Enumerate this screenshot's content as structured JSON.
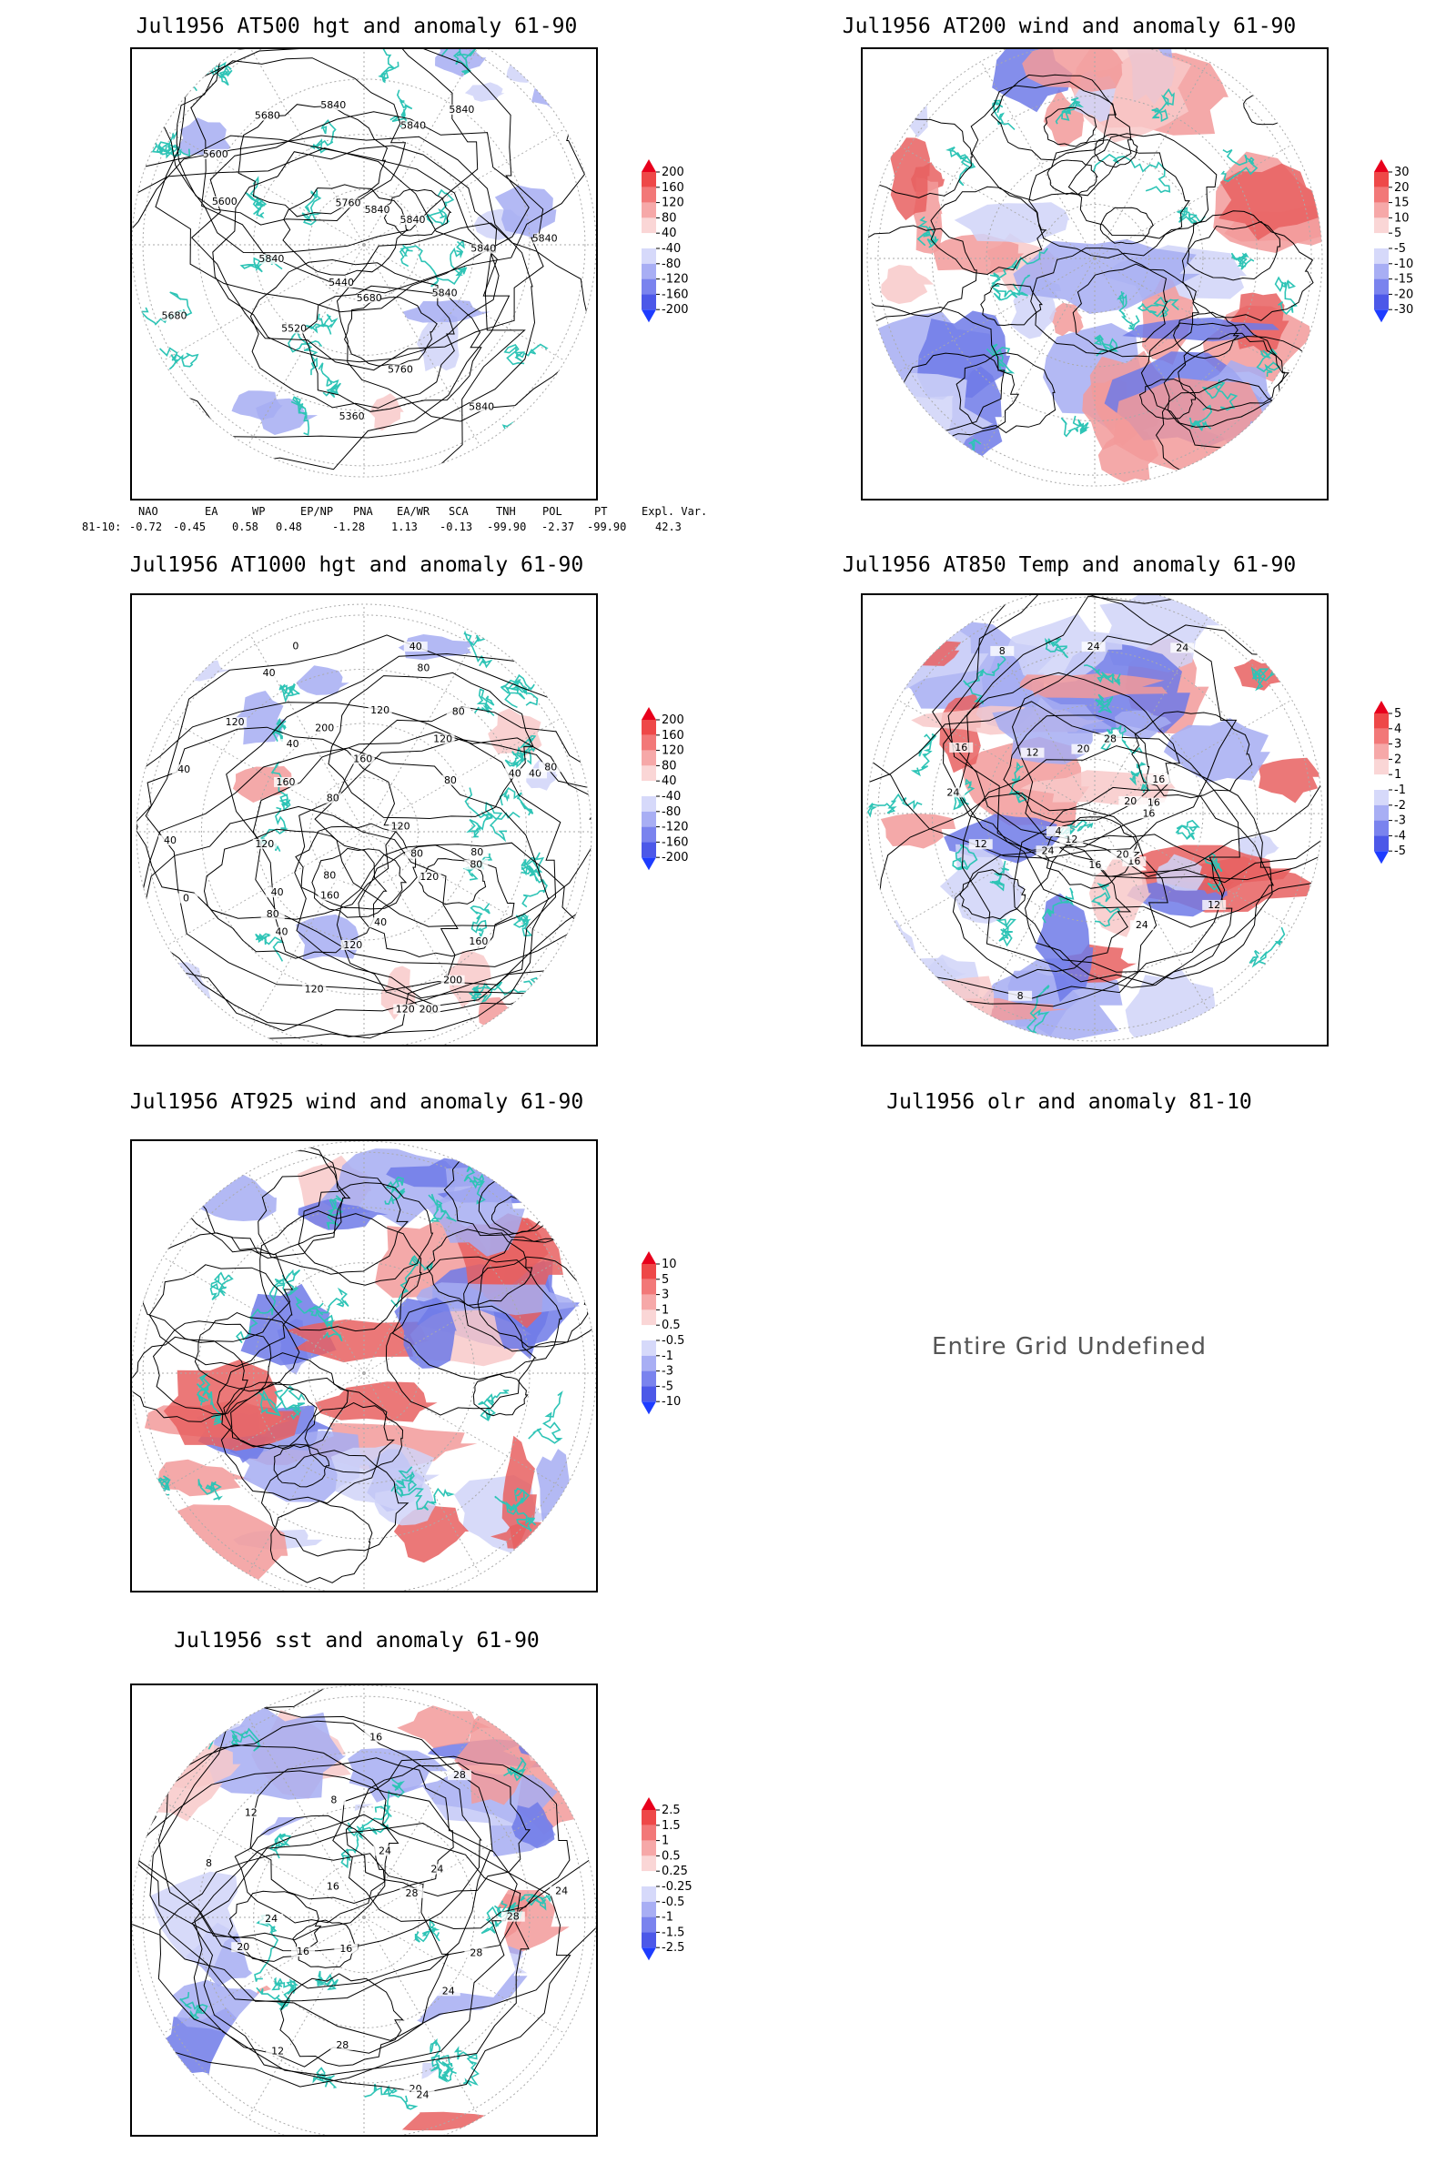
{
  "panels": [
    {
      "id": "p1",
      "title": "Jul1956 AT500 hgt and anomaly 61-90",
      "contour_labels": [
        "5840",
        "5840",
        "5840",
        "5760",
        "5680",
        "5360",
        "5440",
        "5520",
        "5680",
        "5840",
        "5600",
        "5600",
        "5680",
        "5760",
        "5840",
        "5840",
        "5840",
        "5840",
        "5840",
        "5840"
      ],
      "colorbar": [
        "200",
        "160",
        "120",
        "80",
        "40",
        "-40",
        "-80",
        "-120",
        "-160",
        "-200"
      ]
    },
    {
      "id": "p2",
      "title": "Jul1956 AT200 wind and anomaly 61-90",
      "colorbar": [
        "30",
        "20",
        "15",
        "10",
        "5",
        "-5",
        "-10",
        "-15",
        "-20",
        "-30"
      ]
    },
    {
      "id": "p3",
      "title": "Jul1956 AT1000 hgt and anomaly 61-90",
      "contour_labels": [
        "80",
        "80",
        "80",
        "120",
        "160",
        "200",
        "200",
        "120",
        "40",
        "120",
        "160",
        "120",
        "40",
        "80",
        "80",
        "40",
        "0",
        "40",
        "120",
        "40",
        "160",
        "120",
        "40",
        "80",
        "0",
        "40",
        "200",
        "160",
        "120",
        "80",
        "40",
        "80",
        "120",
        "80",
        "40",
        "40",
        "80",
        "120"
      ],
      "colorbar": [
        "200",
        "160",
        "120",
        "80",
        "40",
        "-40",
        "-80",
        "-120",
        "-160",
        "-200"
      ]
    },
    {
      "id": "p4",
      "title": "Jul1956 AT850 Temp and anomaly 61-90",
      "contour_labels": [
        "16",
        "12",
        "16",
        "20",
        "24",
        "16",
        "8",
        "12",
        "24",
        "4",
        "12",
        "24",
        "16",
        "12",
        "8",
        "20",
        "24",
        "28",
        "24",
        "16",
        "20",
        "16"
      ],
      "colorbar": [
        "5",
        "4",
        "3",
        "2",
        "1",
        "-1",
        "-2",
        "-3",
        "-4",
        "-5"
      ]
    },
    {
      "id": "p5",
      "title": "Jul1956 AT925 wind and anomaly 61-90",
      "colorbar": [
        "10",
        "5",
        "3",
        "1",
        "0.5",
        "-0.5",
        "-1",
        "-3",
        "-5",
        "-10"
      ]
    },
    {
      "id": "p6",
      "title": "Jul1956 olr and anomaly 81-10",
      "message": "Entire Grid Undefined"
    },
    {
      "id": "p7",
      "title": "Jul1956 sst and anomaly 61-90",
      "contour_labels": [
        "28",
        "28",
        "24",
        "20",
        "24",
        "28",
        "16",
        "12",
        "16",
        "20",
        "24",
        "8",
        "12",
        "16",
        "8",
        "16",
        "24",
        "28",
        "24",
        "28",
        "24"
      ],
      "colorbar": [
        "2.5",
        "1.5",
        "1",
        "0.5",
        "0.25",
        "-0.25",
        "-0.5",
        "-1",
        "-1.5",
        "-2.5"
      ]
    }
  ],
  "indices": {
    "headers": [
      "NAO",
      "EA",
      "WP",
      "EP/NP",
      "PNA",
      "EA/WR",
      "SCA",
      "TNH",
      "POL",
      "PT",
      "Expl. Var."
    ],
    "row_label": "81-10:",
    "values": [
      "-0.72",
      "-0.45",
      "0.58",
      "0.48",
      "-1.28",
      "1.13",
      "-0.13",
      "-99.90",
      "-2.37",
      "-99.90",
      "42.3"
    ]
  },
  "colors": {
    "coast": "#2ec4b6",
    "pos_strong": "#e8001c",
    "neg_strong": "#1e3cff",
    "grid": "#aaaaaa",
    "contour": "#000000"
  }
}
